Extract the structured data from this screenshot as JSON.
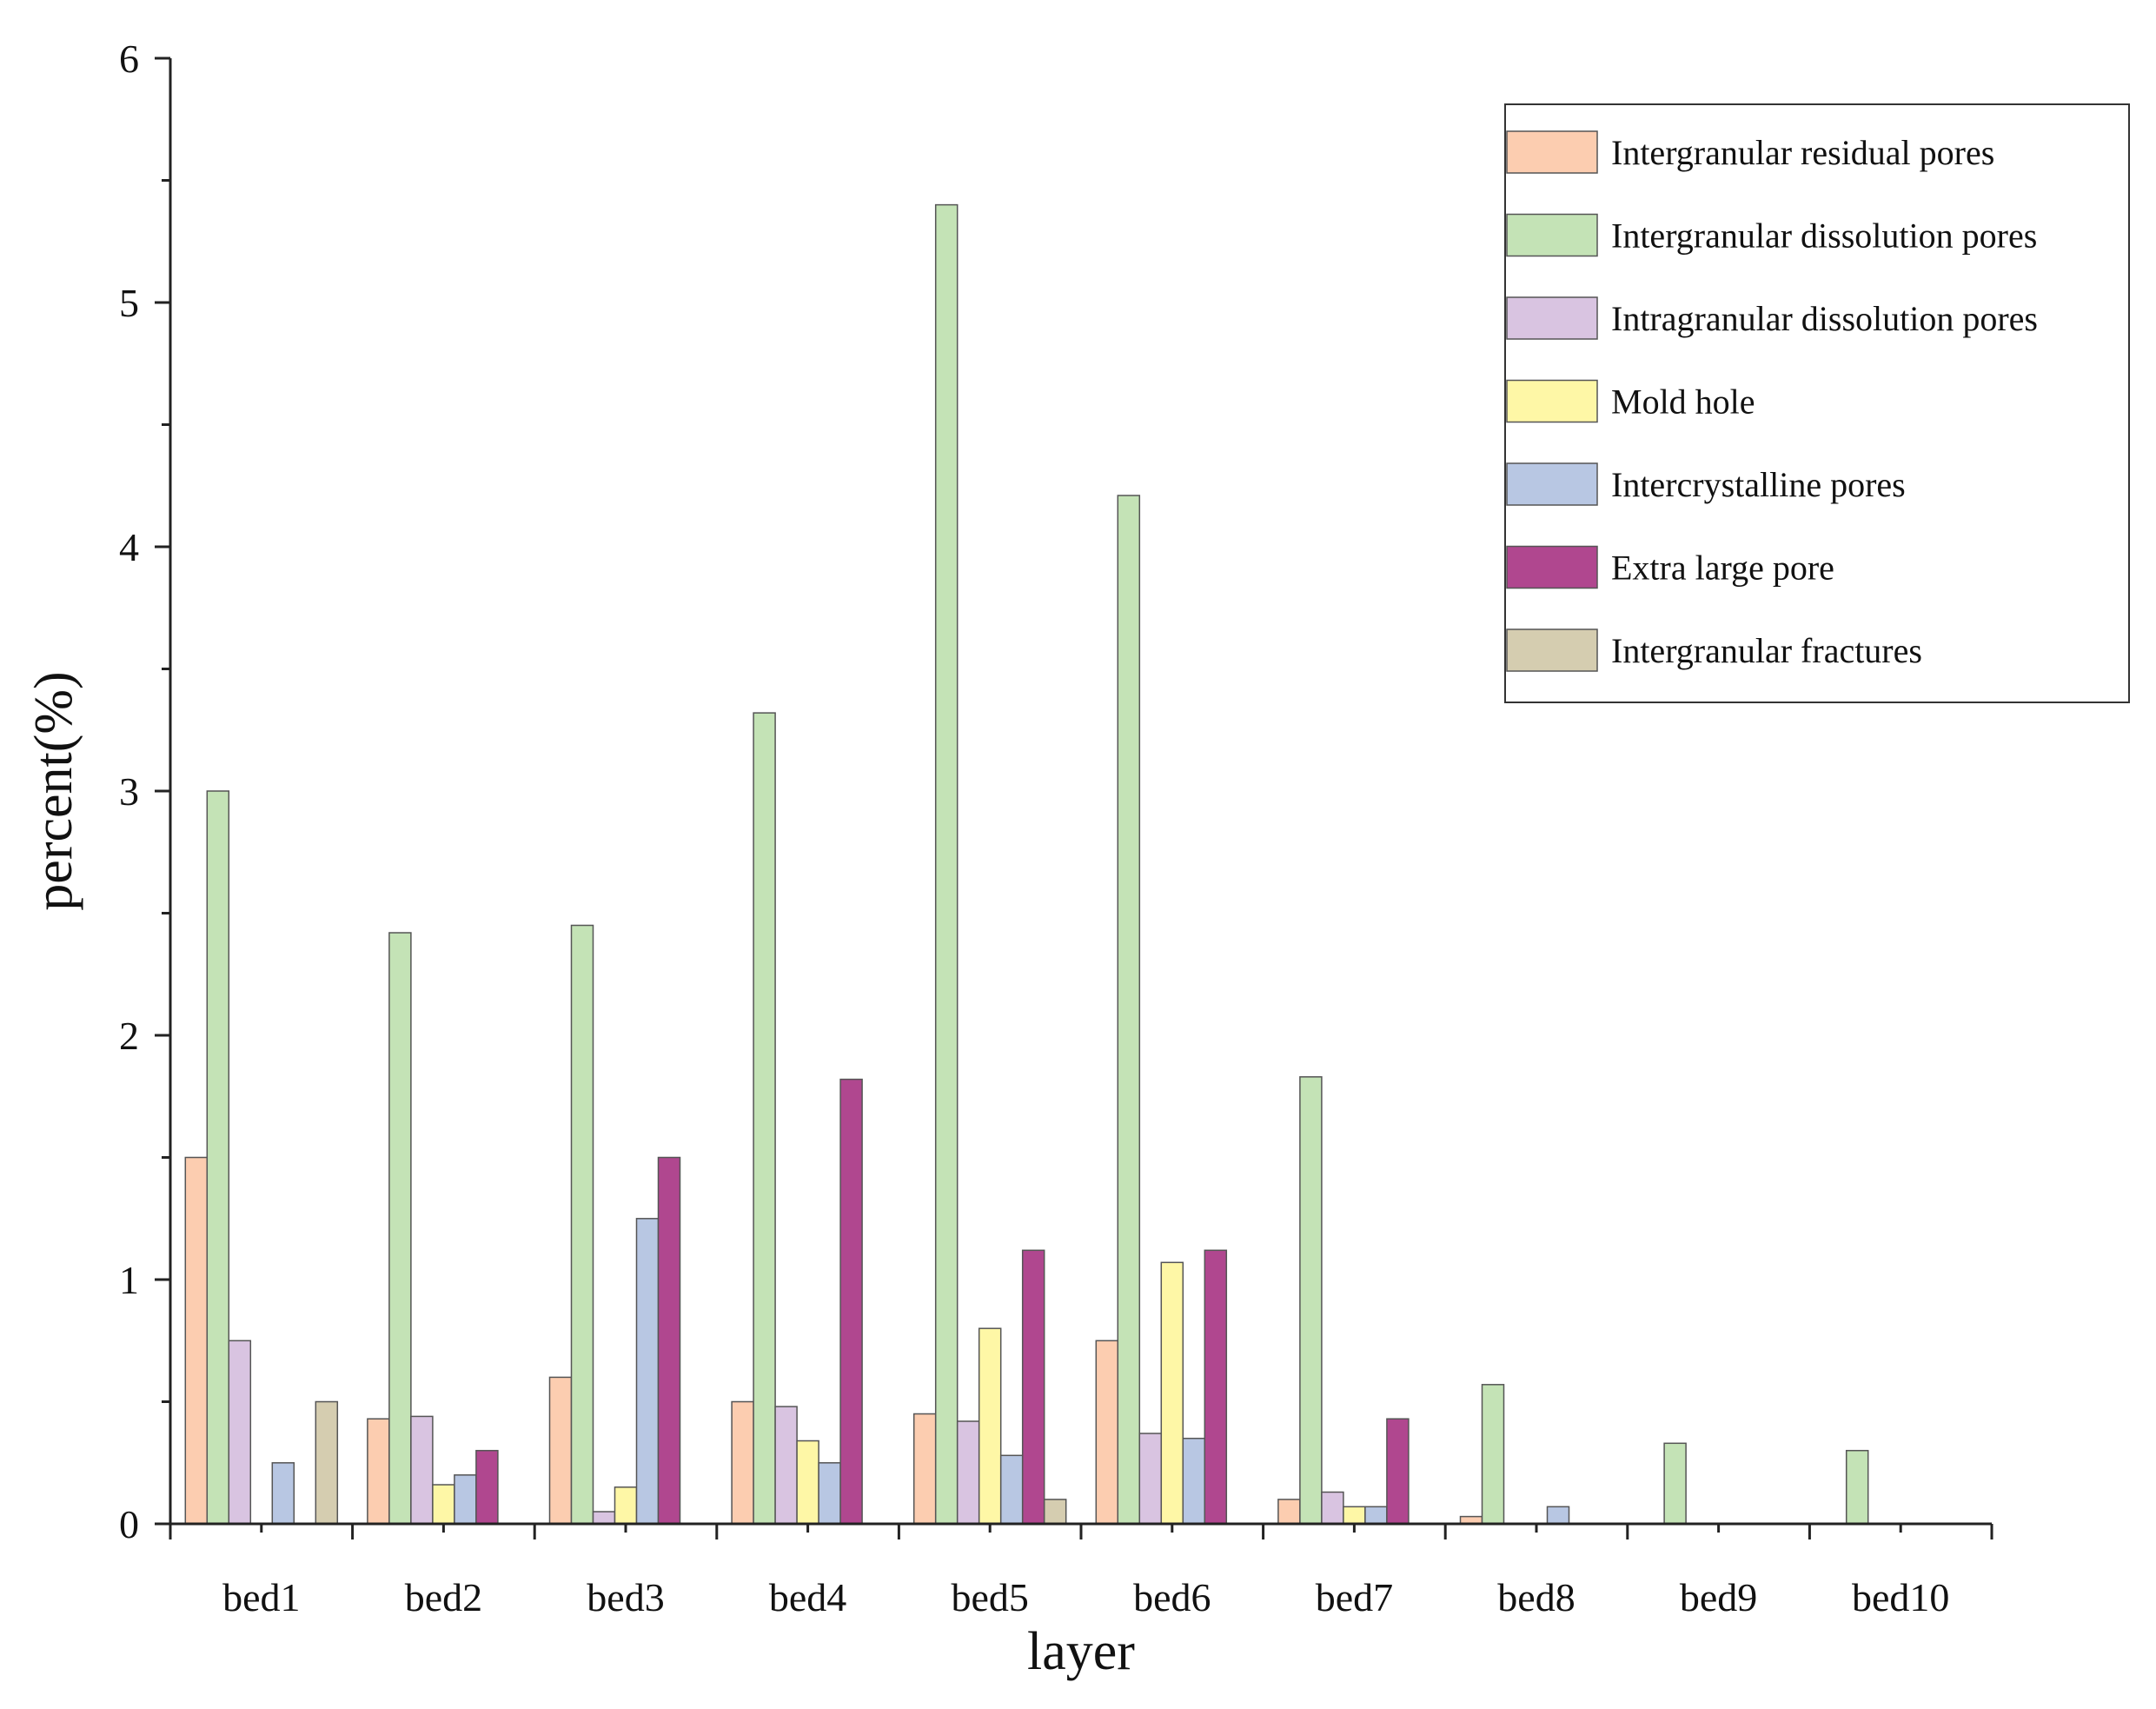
{
  "chart_data": {
    "type": "bar",
    "title": "",
    "xlabel": "layer",
    "ylabel": "percent(%)",
    "ylim": [
      0,
      6
    ],
    "yticks": [
      0,
      1,
      2,
      3,
      4,
      5,
      6
    ],
    "grid": false,
    "legend_position": "top-right",
    "categories": [
      "bed1",
      "bed2",
      "bed3",
      "bed4",
      "bed5",
      "bed6",
      "bed7",
      "bed8",
      "bed9",
      "bed10"
    ],
    "series": [
      {
        "name": "Intergranular residual pores",
        "color": "#FCCDB0",
        "values": [
          1.5,
          0.43,
          0.6,
          0.5,
          0.45,
          0.75,
          0.1,
          0.03,
          0,
          0
        ]
      },
      {
        "name": "Intergranular dissolution pores",
        "color": "#C4E3B6",
        "values": [
          3.0,
          2.42,
          2.45,
          3.32,
          5.4,
          4.21,
          1.83,
          0.57,
          0.33,
          0.3
        ]
      },
      {
        "name": "Intragranular dissolution pores",
        "color": "#D9C4E1",
        "values": [
          0.75,
          0.44,
          0.05,
          0.48,
          0.42,
          0.37,
          0.13,
          0,
          0,
          0
        ]
      },
      {
        "name": "Mold hole",
        "color": "#FEF7A6",
        "values": [
          0,
          0.16,
          0.15,
          0.34,
          0.8,
          1.07,
          0.07,
          0,
          0,
          0
        ]
      },
      {
        "name": "Intercrystalline pores",
        "color": "#B8C7E3",
        "values": [
          0.25,
          0.2,
          1.25,
          0.25,
          0.28,
          0.35,
          0.07,
          0.07,
          0,
          0
        ]
      },
      {
        "name": "Extra large pore",
        "color": "#B0478F",
        "values": [
          0,
          0.3,
          1.5,
          1.82,
          1.12,
          1.12,
          0.43,
          0,
          0,
          0
        ]
      },
      {
        "name": "Intergranular fractures",
        "color": "#D5CDB0",
        "values": [
          0.5,
          0,
          0,
          0,
          0.1,
          0,
          0,
          0,
          0,
          0
        ]
      }
    ]
  }
}
